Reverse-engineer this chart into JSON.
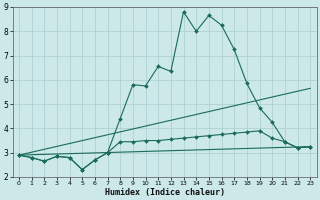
{
  "xlabel": "Humidex (Indice chaleur)",
  "xlim": [
    -0.5,
    23.5
  ],
  "ylim": [
    2,
    9
  ],
  "yticks": [
    2,
    3,
    4,
    5,
    6,
    7,
    8,
    9
  ],
  "xticks": [
    0,
    1,
    2,
    3,
    4,
    5,
    6,
    7,
    8,
    9,
    10,
    11,
    12,
    13,
    14,
    15,
    16,
    17,
    18,
    19,
    20,
    21,
    22,
    23
  ],
  "bg_color": "#cce8e8",
  "grid_color": "#aacece",
  "line_color": "#1a6b5a",
  "lines": [
    {
      "x": [
        0,
        1,
        2,
        3,
        4,
        5,
        6,
        7,
        8,
        9,
        10,
        11,
        12,
        13,
        14,
        15,
        16,
        17,
        18,
        19,
        20,
        21,
        22,
        23
      ],
      "y": [
        2.9,
        2.8,
        2.65,
        2.85,
        2.8,
        2.3,
        2.7,
        3.0,
        3.45,
        3.45,
        3.5,
        3.5,
        3.55,
        3.6,
        3.65,
        3.7,
        3.75,
        3.8,
        3.85,
        3.9,
        3.6,
        3.45,
        3.2,
        3.25
      ],
      "marker": "D",
      "markersize": 2.0,
      "linewidth": 0.8
    },
    {
      "x": [
        0,
        1,
        2,
        3,
        4,
        5,
        6,
        7,
        8,
        9,
        10,
        11,
        12,
        13,
        14,
        15,
        16,
        17,
        18,
        19,
        20,
        21,
        22,
        23
      ],
      "y": [
        2.9,
        2.8,
        2.65,
        2.85,
        2.8,
        2.3,
        2.7,
        3.0,
        4.4,
        5.8,
        5.75,
        6.55,
        6.35,
        8.8,
        8.0,
        8.65,
        8.25,
        7.25,
        5.85,
        4.85,
        4.25,
        3.45,
        3.2,
        3.25
      ],
      "marker": "D",
      "markersize": 2.0,
      "linewidth": 0.8
    },
    {
      "x": [
        0,
        23
      ],
      "y": [
        2.9,
        5.65
      ],
      "marker": null,
      "markersize": 0,
      "linewidth": 0.8
    },
    {
      "x": [
        0,
        23
      ],
      "y": [
        2.9,
        3.25
      ],
      "marker": null,
      "markersize": 0,
      "linewidth": 0.8
    }
  ]
}
